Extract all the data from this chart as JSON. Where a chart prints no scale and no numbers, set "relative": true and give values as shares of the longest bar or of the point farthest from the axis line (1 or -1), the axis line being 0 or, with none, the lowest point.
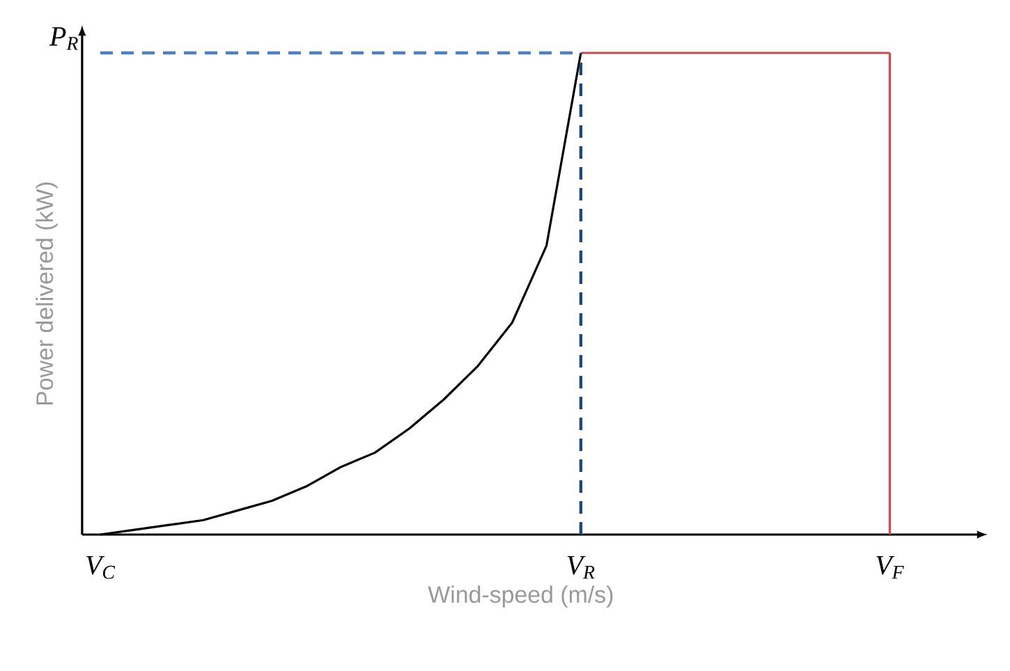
{
  "chart_data": {
    "type": "line",
    "relative": true,
    "xlabel": "Wind-speed (m/s)",
    "ylabel": "Power delivered (kW)",
    "categories": [
      "V$_{C}$",
      null,
      null,
      null,
      null,
      null,
      null,
      null,
      null,
      null,
      null,
      null,
      null,
      null,
      "V$_{R}$",
      null,
      null,
      null,
      null,
      null,
      null,
      null,
      null,
      "V$_{F}$"
    ],
    "annotations": [
      "P$_{R}$"
    ],
    "series": [
      {
        "color": "#000000",
        "line_style": "solid",
        "values": [
          0,
          0.01,
          0.02,
          0.03,
          0.05,
          0.07,
          0.1,
          0.14,
          0.17,
          0.22,
          0.28,
          0.35,
          0.44,
          0.6,
          1.0,
          null,
          null,
          null,
          null,
          null,
          null,
          null,
          null,
          null
        ]
      },
      {
        "color": "#c0504d",
        "line_style": "solid",
        "values": [
          null,
          null,
          null,
          null,
          null,
          null,
          null,
          null,
          null,
          null,
          null,
          null,
          null,
          null,
          1.0,
          1.0,
          1.0,
          1.0,
          1.0,
          1.0,
          1.0,
          1.0,
          1.0,
          1.0
        ]
      },
      {
        "color": "#4f81bd",
        "line_style": "dashed",
        "values": [
          1.0,
          1.0,
          1.0,
          1.0,
          1.0,
          1.0,
          1.0,
          1.0,
          1.0,
          1.0,
          1.0,
          1.0,
          1.0,
          1.0,
          1.0,
          null,
          null,
          null,
          null,
          null,
          null,
          null,
          null,
          null
        ]
      }
    ],
    "ref_lines": [
      {
        "axis": "x",
        "value": "V$_{R}$",
        "color": "#1f497d",
        "line_style": "dashed"
      },
      {
        "axis": "x",
        "value": "V$_{F}$",
        "color": "#c0504d",
        "line_style": "solid"
      }
    ],
    "marker": "none"
  }
}
